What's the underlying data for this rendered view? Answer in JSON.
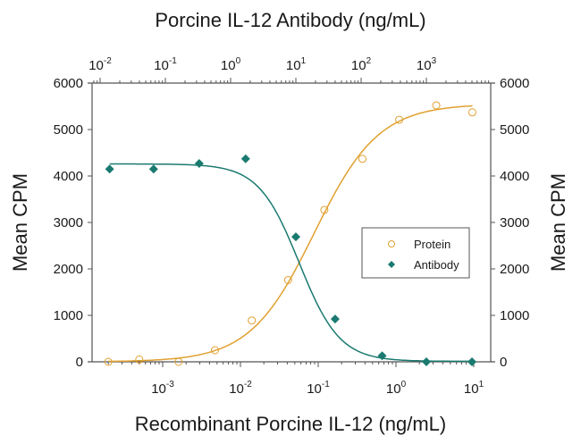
{
  "chart_data": {
    "type": "scatter",
    "title_top": "Porcine IL-12 Antibody (ng/mL)",
    "xlabel": "Recombinant Porcine IL-12 (ng/mL)",
    "ylabel": "Mean CPM",
    "ylabel_right": "Mean CPM",
    "ylim": [
      0,
      6000
    ],
    "y_ticks": [
      0,
      1000,
      2000,
      3000,
      4000,
      5000,
      6000
    ],
    "x_bottom": {
      "scale": "log",
      "tick_exponents": [
        -3,
        -2,
        -1,
        0,
        1
      ],
      "range": [
        0.00012,
        15
      ]
    },
    "x_top": {
      "scale": "log",
      "tick_exponents": [
        -2,
        -1,
        0,
        1,
        2,
        3
      ],
      "range": [
        0.0085,
        9000
      ]
    },
    "grid": false,
    "legend_position": "center-right",
    "series": [
      {
        "name": "Protein",
        "axis": "bottom",
        "marker": "open-circle",
        "color": "#e0a030",
        "x": [
          0.0002,
          0.0005,
          0.0016,
          0.0047,
          0.014,
          0.041,
          0.12,
          0.37,
          1.1,
          3.3,
          9.6
        ],
        "values": [
          0,
          50,
          0,
          250,
          890,
          1760,
          3270,
          4370,
          5210,
          5520,
          5370
        ]
      },
      {
        "name": "Antibody",
        "axis": "top",
        "marker": "filled-diamond",
        "color": "#1a7a70",
        "x": [
          0.014,
          0.066,
          0.33,
          1.7,
          10,
          40,
          210,
          1000,
          5000
        ],
        "values": [
          4150,
          4150,
          4270,
          4370,
          2690,
          920,
          130,
          0,
          0
        ]
      }
    ]
  },
  "legend": {
    "items": [
      "Protein",
      "Antibody"
    ]
  }
}
